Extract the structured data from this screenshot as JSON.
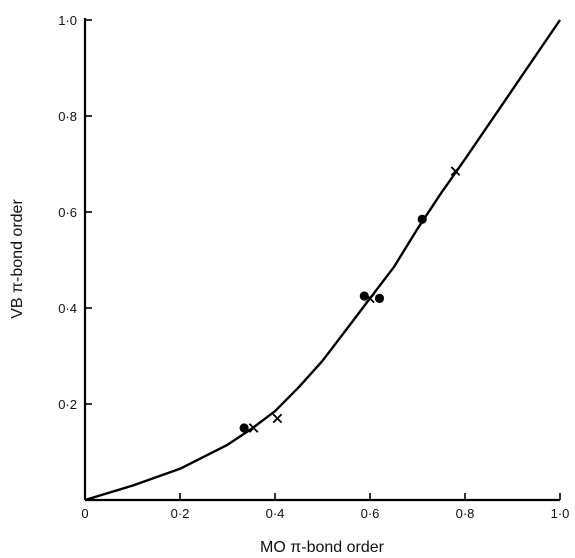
{
  "chart_data": {
    "type": "scatter",
    "title": "",
    "xlabel": "MO π-bond order",
    "ylabel": "VB π-bond order",
    "xlim": [
      0,
      1.0
    ],
    "ylim": [
      0,
      1.0
    ],
    "x_ticks": [
      {
        "value": 0,
        "label": "0"
      },
      {
        "value": 0.2,
        "label": "0·2"
      },
      {
        "value": 0.4,
        "label": "0·4"
      },
      {
        "value": 0.6,
        "label": "0·6"
      },
      {
        "value": 0.8,
        "label": "0·8"
      },
      {
        "value": 1.0,
        "label": "1·0"
      }
    ],
    "y_ticks": [
      {
        "value": 0.2,
        "label": "0·2"
      },
      {
        "value": 0.4,
        "label": "0·4"
      },
      {
        "value": 0.6,
        "label": "0·6"
      },
      {
        "value": 0.8,
        "label": "0·8"
      },
      {
        "value": 1.0,
        "label": "1·0"
      }
    ],
    "grid": false,
    "series": [
      {
        "marker": "dot",
        "points": [
          {
            "x": 0.335,
            "y": 0.15
          },
          {
            "x": 0.588,
            "y": 0.425
          },
          {
            "x": 0.62,
            "y": 0.42
          },
          {
            "x": 0.71,
            "y": 0.585
          }
        ]
      },
      {
        "marker": "x",
        "points": [
          {
            "x": 0.355,
            "y": 0.15
          },
          {
            "x": 0.405,
            "y": 0.17
          },
          {
            "x": 0.6,
            "y": 0.42
          },
          {
            "x": 0.78,
            "y": 0.685
          }
        ]
      },
      {
        "marker": "line",
        "points": [
          {
            "x": 0.0,
            "y": 0.0
          },
          {
            "x": 0.1,
            "y": 0.03
          },
          {
            "x": 0.2,
            "y": 0.065
          },
          {
            "x": 0.3,
            "y": 0.115
          },
          {
            "x": 0.35,
            "y": 0.148
          },
          {
            "x": 0.4,
            "y": 0.185
          },
          {
            "x": 0.45,
            "y": 0.235
          },
          {
            "x": 0.5,
            "y": 0.29
          },
          {
            "x": 0.55,
            "y": 0.355
          },
          {
            "x": 0.6,
            "y": 0.42
          },
          {
            "x": 0.65,
            "y": 0.485
          },
          {
            "x": 0.7,
            "y": 0.565
          },
          {
            "x": 0.75,
            "y": 0.64
          },
          {
            "x": 0.8,
            "y": 0.71
          },
          {
            "x": 0.9,
            "y": 0.855
          },
          {
            "x": 1.0,
            "y": 1.0
          }
        ]
      }
    ]
  }
}
